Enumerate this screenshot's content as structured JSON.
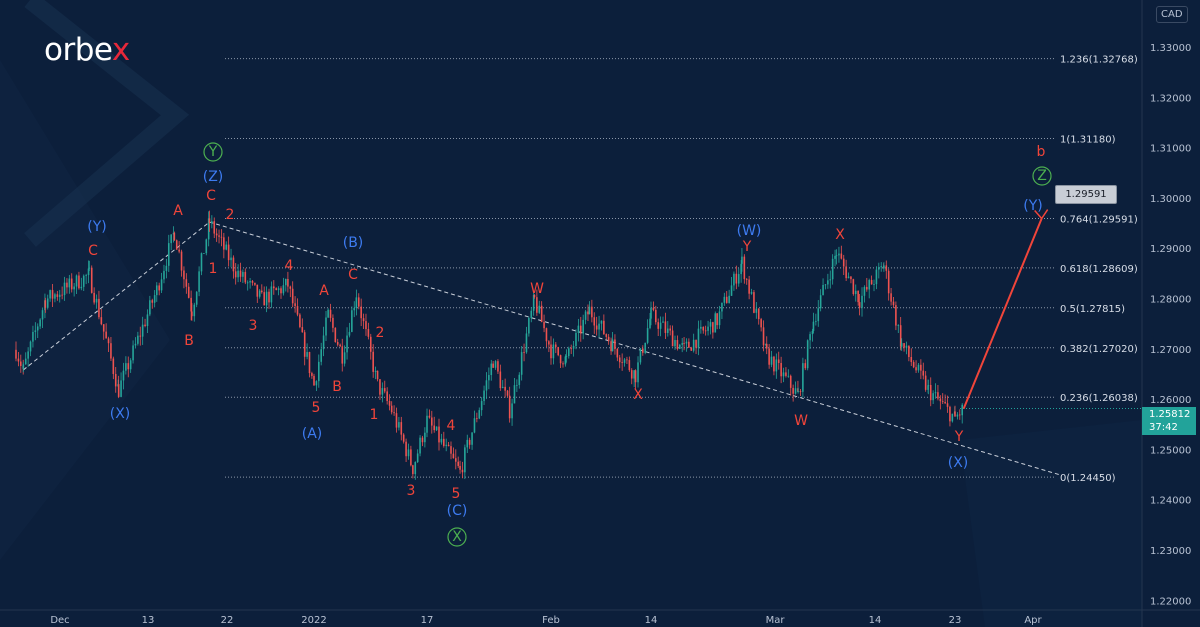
{
  "brand": {
    "logo_text": "orbe",
    "logo_accent": "x"
  },
  "currency_label": "CAD",
  "current_price": {
    "value": "1.25812",
    "countdown": "37:42",
    "color": "#22a39a"
  },
  "target_box": "1.29591",
  "colors": {
    "background": "#0c1f3b",
    "up": "#26a69a",
    "down": "#ef5350",
    "wave_red": "#f0453a",
    "wave_blue": "#3d7bf0",
    "wave_green": "#4caf50",
    "projection": "#f0453a"
  },
  "chart_data": {
    "type": "candlestick",
    "title": "",
    "ylim": [
      1.215,
      1.335
    ],
    "y_ticks": [
      "1.33000",
      "1.32000",
      "1.31000",
      "1.30000",
      "1.29000",
      "1.28000",
      "1.27000",
      "1.26000",
      "1.25000",
      "1.24000",
      "1.23000",
      "1.22000"
    ],
    "x_ticks": [
      {
        "label": "Dec",
        "date": "2021-12-01"
      },
      {
        "label": "13",
        "date": "2021-12-13"
      },
      {
        "label": "22",
        "date": "2021-12-22"
      },
      {
        "label": "2022",
        "date": "2022-01-01"
      },
      {
        "label": "17",
        "date": "2022-01-17"
      },
      {
        "label": "Feb",
        "date": "2022-02-01"
      },
      {
        "label": "14",
        "date": "2022-02-14"
      },
      {
        "label": "Mar",
        "date": "2022-03-01"
      },
      {
        "label": "14",
        "date": "2022-03-14"
      },
      {
        "label": "23",
        "date": "2022-03-23"
      },
      {
        "label": "Apr",
        "date": "2022-04-01"
      }
    ],
    "price_path": [
      [
        "2021-11-25",
        1.2698
      ],
      [
        "2021-11-26",
        1.2658
      ],
      [
        "2021-11-29",
        1.2797
      ],
      [
        "2021-12-05",
        1.2847
      ],
      [
        "2021-12-09",
        1.2618
      ],
      [
        "2021-12-14",
        1.2817
      ],
      [
        "2021-12-16",
        1.2932
      ],
      [
        "2021-12-18",
        1.2777
      ],
      [
        "2021-12-20",
        1.2952
      ],
      [
        "2021-12-23",
        1.2856
      ],
      [
        "2021-12-26",
        1.2797
      ],
      [
        "2021-12-29",
        1.2827
      ],
      [
        "2022-01-01",
        1.2628
      ],
      [
        "2022-01-03",
        1.2767
      ],
      [
        "2022-01-05",
        1.2688
      ],
      [
        "2022-01-07",
        1.2811
      ],
      [
        "2022-01-10",
        1.2628
      ],
      [
        "2022-01-12",
        1.2578
      ],
      [
        "2022-01-15",
        1.2463
      ],
      [
        "2022-01-17",
        1.2558
      ],
      [
        "2022-01-21",
        1.2455
      ],
      [
        "2022-01-25",
        1.2678
      ],
      [
        "2022-01-27",
        1.2578
      ],
      [
        "2022-01-30",
        1.2797
      ],
      [
        "2022-02-01",
        1.2698
      ],
      [
        "2022-02-03",
        1.2678
      ],
      [
        "2022-02-06",
        1.2777
      ],
      [
        "2022-02-09",
        1.2708
      ],
      [
        "2022-02-12",
        1.2648
      ],
      [
        "2022-02-14",
        1.2767
      ],
      [
        "2022-02-18",
        1.2698
      ],
      [
        "2022-02-22",
        1.2757
      ],
      [
        "2022-02-25",
        1.2872
      ],
      [
        "2022-02-28",
        1.2688
      ],
      [
        "2022-03-04",
        1.2608
      ],
      [
        "2022-03-06",
        1.2757
      ],
      [
        "2022-03-09",
        1.2892
      ],
      [
        "2022-03-12",
        1.2797
      ],
      [
        "2022-03-15",
        1.2866
      ],
      [
        "2022-03-17",
        1.2708
      ],
      [
        "2022-03-20",
        1.2618
      ],
      [
        "2022-03-23",
        1.2562
      ],
      [
        "2022-03-24",
        1.2581
      ]
    ],
    "fib_levels": [
      {
        "ratio": "1.236",
        "price": 1.32768,
        "label": "1.236(1.32768)"
      },
      {
        "ratio": "1",
        "price": 1.3118,
        "label": "1(1.31180)"
      },
      {
        "ratio": "0.764",
        "price": 1.29591,
        "label": "0.764(1.29591)"
      },
      {
        "ratio": "0.618",
        "price": 1.28609,
        "label": "0.618(1.28609)"
      },
      {
        "ratio": "0.5",
        "price": 1.27815,
        "label": "0.5(1.27815)"
      },
      {
        "ratio": "0.382",
        "price": 1.2702,
        "label": "0.382(1.27020)"
      },
      {
        "ratio": "0.236",
        "price": 1.26038,
        "label": "0.236(1.26038)"
      },
      {
        "ratio": "0",
        "price": 1.2445,
        "label": "0(1.24450)"
      }
    ],
    "trendlines": [
      {
        "style": "dashed",
        "from": [
          "2021-11-26",
          1.2658
        ],
        "to": [
          "2021-12-20",
          1.2952
        ]
      },
      {
        "style": "dashed",
        "from": [
          "2021-12-20",
          1.2952
        ],
        "to": [
          "2022-04-04",
          1.245
        ]
      }
    ],
    "projection": {
      "from": [
        "2022-03-24",
        1.2581
      ],
      "to": [
        "2022-04-02",
        1.2959
      ]
    },
    "wave_labels": [
      {
        "text": "Y",
        "color": "green",
        "circled": true
      },
      {
        "text": "(Z)",
        "color": "blue"
      },
      {
        "text": "C",
        "color": "red"
      },
      {
        "text": "2",
        "color": "red"
      },
      {
        "text": "A",
        "color": "red"
      },
      {
        "text": "(Y)",
        "color": "blue"
      },
      {
        "text": "C",
        "color": "red"
      },
      {
        "text": "1",
        "color": "red"
      },
      {
        "text": "4",
        "color": "red"
      },
      {
        "text": "3",
        "color": "red"
      },
      {
        "text": "B",
        "color": "red"
      },
      {
        "text": "(X)",
        "color": "blue"
      },
      {
        "text": "A",
        "color": "red"
      },
      {
        "text": "C",
        "color": "red"
      },
      {
        "text": "(B)",
        "color": "blue"
      },
      {
        "text": "2",
        "color": "red"
      },
      {
        "text": "5",
        "color": "red"
      },
      {
        "text": "B",
        "color": "red"
      },
      {
        "text": "(A)",
        "color": "blue"
      },
      {
        "text": "1",
        "color": "red"
      },
      {
        "text": "4",
        "color": "red"
      },
      {
        "text": "3",
        "color": "red"
      },
      {
        "text": "5",
        "color": "red"
      },
      {
        "text": "(C)",
        "color": "blue"
      },
      {
        "text": "X",
        "color": "green",
        "circled": true
      },
      {
        "text": "W",
        "color": "red"
      },
      {
        "text": "X",
        "color": "red"
      },
      {
        "text": "(W)",
        "color": "blue"
      },
      {
        "text": "Y",
        "color": "red"
      },
      {
        "text": "X",
        "color": "red"
      },
      {
        "text": "W",
        "color": "red"
      },
      {
        "text": "Y",
        "color": "red"
      },
      {
        "text": "(X)",
        "color": "blue"
      },
      {
        "text": "b",
        "color": "red"
      },
      {
        "text": "Z",
        "color": "green",
        "circled": true
      },
      {
        "text": "(Y)",
        "color": "blue"
      }
    ]
  }
}
